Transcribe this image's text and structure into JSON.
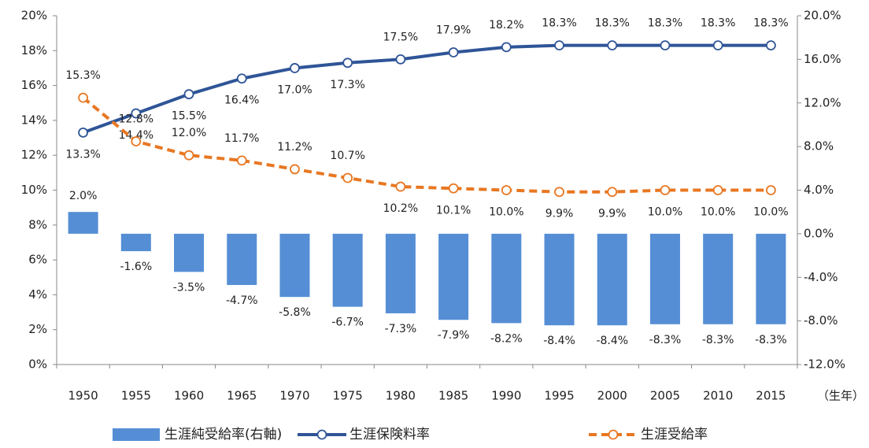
{
  "chart_data": {
    "type": "combo",
    "categories": [
      "1950",
      "1955",
      "1960",
      "1965",
      "1970",
      "1975",
      "1980",
      "1985",
      "1990",
      "1995",
      "2000",
      "2005",
      "2010",
      "2015"
    ],
    "x_label": "（生年）",
    "series": [
      {
        "name": "生涯純受給率(右軸)",
        "type": "bar",
        "axis": "y2",
        "color": "#558ed5",
        "values": [
          2.0,
          -1.6,
          -3.5,
          -4.7,
          -5.8,
          -6.7,
          -7.3,
          -7.9,
          -8.2,
          -8.4,
          -8.4,
          -8.3,
          -8.3,
          -8.3
        ],
        "value_labels": [
          "2.0%",
          "-1.6%",
          "-3.5%",
          "-4.7%",
          "-5.8%",
          "-6.7%",
          "-7.3%",
          "-7.9%",
          "-8.2%",
          "-8.4%",
          "-8.4%",
          "-8.3%",
          "-8.3%",
          "-8.3%"
        ]
      },
      {
        "name": "生涯保険料率",
        "type": "line",
        "color": "#2f5597",
        "dashed": false,
        "values": [
          13.3,
          14.4,
          15.5,
          16.4,
          17.0,
          17.3,
          17.5,
          17.9,
          18.2,
          18.3,
          18.3,
          18.3,
          18.3,
          18.3
        ],
        "value_labels": [
          "13.3%",
          "14.4%",
          "15.5%",
          "16.4%",
          "17.0%",
          "17.3%",
          "17.5%",
          "17.9%",
          "18.2%",
          "18.3%",
          "18.3%",
          "18.3%",
          "18.3%",
          "18.3%"
        ]
      },
      {
        "name": "生涯受給率",
        "type": "line",
        "color": "#e87722",
        "dashed": true,
        "values": [
          15.3,
          12.8,
          12.0,
          11.7,
          11.2,
          10.7,
          10.2,
          10.1,
          10.0,
          9.9,
          9.9,
          10.0,
          10.0,
          10.0
        ],
        "value_labels": [
          "15.3%",
          "12.8%",
          "12.0%",
          "11.7%",
          "11.2%",
          "10.7%",
          "10.2%",
          "10.1%",
          "10.0%",
          "9.9%",
          "9.9%",
          "10.0%",
          "10.0%",
          "10.0%"
        ]
      }
    ],
    "ylim": [
      0,
      20
    ],
    "yticks": [
      {
        "value": 0,
        "label": "0%"
      },
      {
        "value": 2,
        "label": "2%"
      },
      {
        "value": 4,
        "label": "4%"
      },
      {
        "value": 6,
        "label": "6%"
      },
      {
        "value": 8,
        "label": "8%"
      },
      {
        "value": 10,
        "label": "10%"
      },
      {
        "value": 12,
        "label": "12%"
      },
      {
        "value": 14,
        "label": "14%"
      },
      {
        "value": 16,
        "label": "16%"
      },
      {
        "value": 18,
        "label": "18%"
      },
      {
        "value": 20,
        "label": "20%"
      }
    ],
    "y2lim": [
      -12,
      20
    ],
    "y2ticks": [
      {
        "value": -12,
        "label": "-12.0%"
      },
      {
        "value": -8,
        "label": "-8.0%"
      },
      {
        "value": -4,
        "label": "-4.0%"
      },
      {
        "value": 0,
        "label": "0.0%"
      },
      {
        "value": 4,
        "label": "4.0%"
      },
      {
        "value": 8,
        "label": "8.0%"
      },
      {
        "value": 12,
        "label": "12.0%"
      },
      {
        "value": 16,
        "label": "16.0%"
      },
      {
        "value": 20,
        "label": "20.0%"
      }
    ],
    "grid": false
  }
}
